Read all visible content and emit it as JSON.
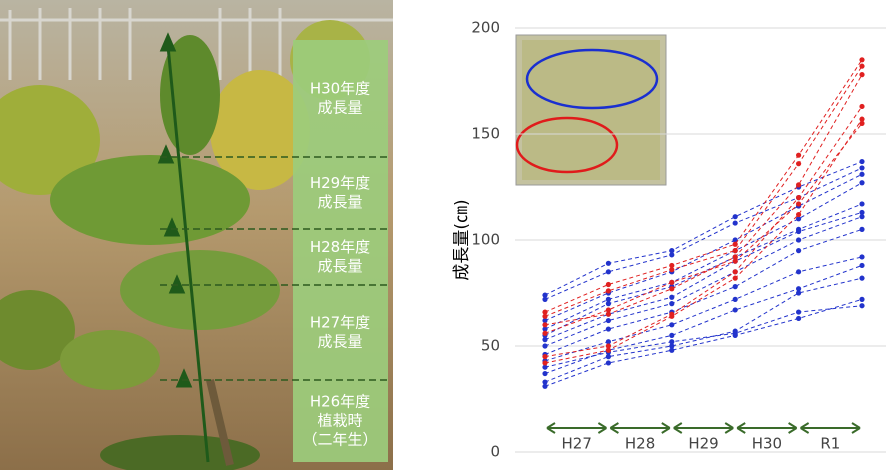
{
  "photo": {
    "labels": [
      [
        "H30年度",
        "成長量"
      ],
      [
        "H29年度",
        "成長量"
      ],
      [
        "H28年度",
        "成長量"
      ],
      [
        "H27年度",
        "成長量"
      ],
      [
        "H26年度",
        "植栽時",
        "（二年生）"
      ]
    ]
  },
  "chart_data": {
    "type": "line",
    "ylabel": "成長量(㎝)",
    "categories": [
      null,
      null,
      null,
      null,
      null,
      null
    ],
    "periods": [
      "H27",
      "H28",
      "H29",
      "H30",
      "R1"
    ],
    "ylim": [
      0,
      200
    ],
    "yticks": [
      0,
      50,
      100,
      150,
      200
    ],
    "grid": true,
    "series": [
      {
        "color": "#2233cc",
        "values": [
          74,
          89,
          95,
          111,
          125,
          137
        ]
      },
      {
        "color": "#2233cc",
        "values": [
          72,
          85,
          93,
          108,
          120,
          134
        ]
      },
      {
        "color": "#2233cc",
        "values": [
          62,
          75,
          85,
          100,
          116,
          131
        ]
      },
      {
        "color": "#2233cc",
        "values": [
          58,
          72,
          80,
          95,
          110,
          127
        ]
      },
      {
        "color": "#2233cc",
        "values": [
          55,
          70,
          78,
          92,
          105,
          117
        ]
      },
      {
        "color": "#2233cc",
        "values": [
          53,
          65,
          73,
          90,
          104,
          113
        ]
      },
      {
        "color": "#2233cc",
        "values": [
          50,
          62,
          70,
          85,
          100,
          111
        ]
      },
      {
        "color": "#2233cc",
        "values": [
          46,
          58,
          66,
          78,
          95,
          105
        ]
      },
      {
        "color": "#2233cc",
        "values": [
          43,
          52,
          60,
          72,
          85,
          92
        ]
      },
      {
        "color": "#2233cc",
        "values": [
          37,
          48,
          55,
          67,
          77,
          88
        ]
      },
      {
        "color": "#2233cc",
        "values": [
          33,
          45,
          50,
          57,
          75,
          82
        ]
      },
      {
        "color": "#2233cc",
        "values": [
          31,
          42,
          48,
          55,
          63,
          72
        ]
      },
      {
        "color": "#2233cc",
        "values": [
          40,
          47,
          52,
          56,
          66,
          69
        ]
      },
      {
        "color": "#e02020",
        "values": [
          66,
          79,
          88,
          98,
          140,
          185
        ]
      },
      {
        "color": "#e02020",
        "values": [
          64,
          76,
          86,
          95,
          136,
          182
        ]
      },
      {
        "color": "#e02020",
        "values": [
          60,
          65,
          77,
          92,
          126,
          178
        ]
      },
      {
        "color": "#e02020",
        "values": [
          45,
          50,
          65,
          85,
          120,
          163
        ]
      },
      {
        "color": "#e02020",
        "values": [
          42,
          48,
          64,
          82,
          112,
          157
        ]
      },
      {
        "color": "#e02020",
        "values": [
          56,
          67,
          80,
          90,
          117,
          155
        ]
      }
    ]
  }
}
